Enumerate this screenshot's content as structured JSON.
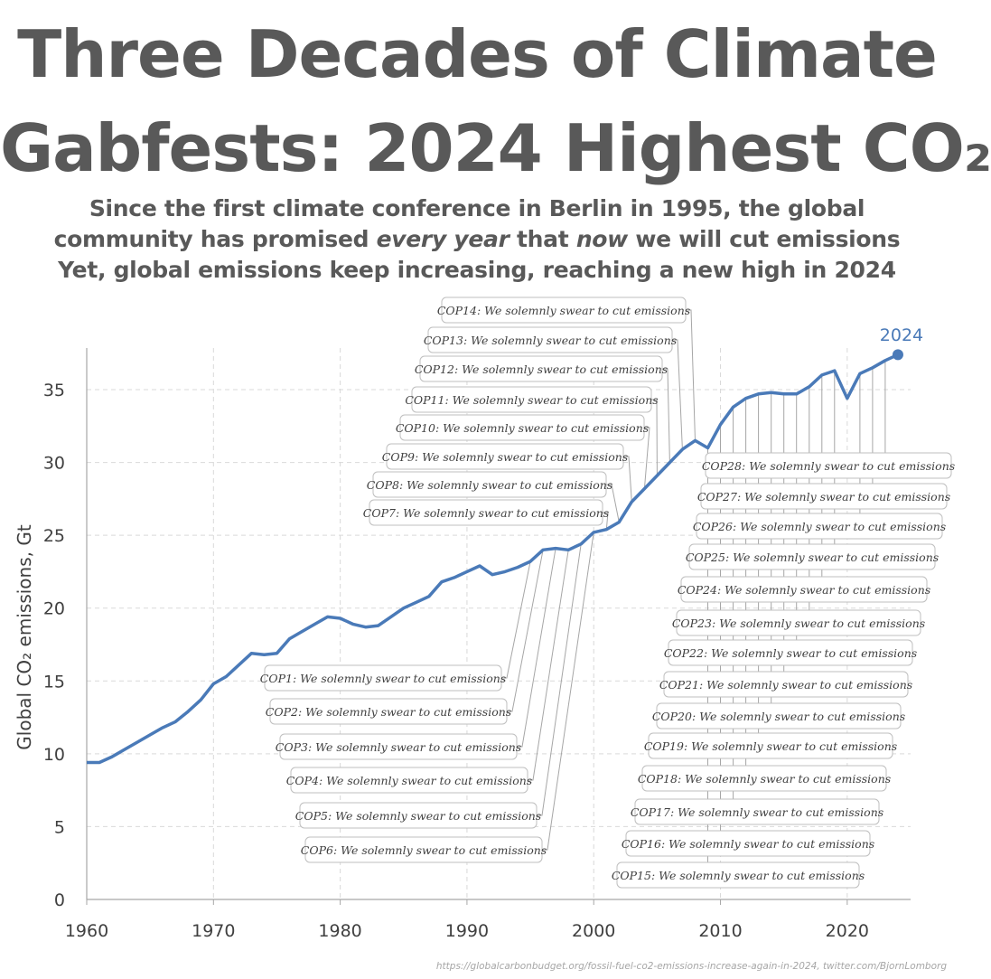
{
  "title": {
    "line1": "Three Decades of Climate",
    "line2": "Gabfests: 2024 Highest CO₂"
  },
  "subtitle": {
    "line1": "Since the first climate conference in Berlin in 1995, the global",
    "line2_a": "community has promised ",
    "line2_b": "every year",
    "line2_c": " that ",
    "line2_d": "now",
    "line2_e": " we will cut emissions",
    "line3": "Yet, global emissions keep increasing, reaching a new high in 2024"
  },
  "source": "https://globalcarbonbudget.org/fossil-fuel-co2-emissions-increase-again-in-2024, twitter.com/BjornLomborg",
  "colors": {
    "line": "#4a7ab8",
    "text": "#595959",
    "grid": "#d9d9d9",
    "callout_border": "#bfbfbf",
    "leader": "#a6a6a6"
  },
  "chart_data": {
    "type": "line",
    "xlabel": "",
    "ylabel": "Global CO₂ emissions, Gt",
    "xlim": [
      1960,
      2025
    ],
    "ylim": [
      0,
      38
    ],
    "xticks": [
      "1960",
      "1970",
      "1980",
      "1990",
      "2000",
      "2010",
      "2020"
    ],
    "yticks": [
      "0",
      "5",
      "10",
      "15",
      "20",
      "25",
      "30",
      "35"
    ],
    "grid": true,
    "end_label": "2024",
    "series": [
      {
        "name": "",
        "x": [
          1960,
          1961,
          1962,
          1963,
          1964,
          1965,
          1966,
          1967,
          1968,
          1969,
          1970,
          1971,
          1972,
          1973,
          1974,
          1975,
          1976,
          1977,
          1978,
          1979,
          1980,
          1981,
          1982,
          1983,
          1984,
          1985,
          1986,
          1987,
          1988,
          1989,
          1990,
          1991,
          1992,
          1993,
          1994,
          1995,
          1996,
          1997,
          1998,
          1999,
          2000,
          2001,
          2002,
          2003,
          2004,
          2005,
          2006,
          2007,
          2008,
          2009,
          2010,
          2011,
          2012,
          2013,
          2014,
          2015,
          2016,
          2017,
          2018,
          2019,
          2020,
          2021,
          2022,
          2023,
          2024
        ],
        "y": [
          9.4,
          9.4,
          9.8,
          10.3,
          10.8,
          11.3,
          11.8,
          12.2,
          12.9,
          13.7,
          14.8,
          15.3,
          16.1,
          16.9,
          16.8,
          16.9,
          17.9,
          18.4,
          18.9,
          19.4,
          19.3,
          18.9,
          18.7,
          18.8,
          19.4,
          20.0,
          20.4,
          20.8,
          21.8,
          22.1,
          22.5,
          22.9,
          22.3,
          22.5,
          22.8,
          23.2,
          24.0,
          24.1,
          24.0,
          24.4,
          25.2,
          25.4,
          25.9,
          27.3,
          28.2,
          29.1,
          30.0,
          30.9,
          31.5,
          31.0,
          32.6,
          33.8,
          34.4,
          34.7,
          34.8,
          34.7,
          34.7,
          35.2,
          36.0,
          36.3,
          34.4,
          36.1,
          36.5,
          37.0,
          37.4
        ]
      }
    ],
    "annotations": [
      {
        "label": "COP1: We solemnly swear to cut emissions",
        "year": 1995
      },
      {
        "label": "COP2: We solemnly swear to cut emissions",
        "year": 1996
      },
      {
        "label": "COP3: We solemnly swear to cut emissions",
        "year": 1997
      },
      {
        "label": "COP4: We solemnly swear to cut emissions",
        "year": 1998
      },
      {
        "label": "COP5: We solemnly swear to cut emissions",
        "year": 1999
      },
      {
        "label": "COP6: We solemnly swear to cut emissions",
        "year": 2000
      },
      {
        "label": "COP7: We solemnly swear to cut emissions",
        "year": 2001
      },
      {
        "label": "COP8: We solemnly swear to cut emissions",
        "year": 2002
      },
      {
        "label": "COP9: We solemnly swear to cut emissions",
        "year": 2003
      },
      {
        "label": "COP10: We solemnly swear to cut emissions",
        "year": 2004
      },
      {
        "label": "COP11: We solemnly swear to cut emissions",
        "year": 2005
      },
      {
        "label": "COP12: We solemnly swear to cut emissions",
        "year": 2006
      },
      {
        "label": "COP13: We solemnly swear to cut emissions",
        "year": 2007
      },
      {
        "label": "COP14: We solemnly swear to cut emissions",
        "year": 2008
      },
      {
        "label": "COP15: We solemnly swear to cut emissions",
        "year": 2009
      },
      {
        "label": "COP16: We solemnly swear to cut emissions",
        "year": 2010
      },
      {
        "label": "COP17: We solemnly swear to cut emissions",
        "year": 2011
      },
      {
        "label": "COP18: We solemnly swear to cut emissions",
        "year": 2012
      },
      {
        "label": "COP19: We solemnly swear to cut emissions",
        "year": 2013
      },
      {
        "label": "COP20: We solemnly swear to cut emissions",
        "year": 2014
      },
      {
        "label": "COP21: We solemnly swear to cut emissions",
        "year": 2015
      },
      {
        "label": "COP22: We solemnly swear to cut emissions",
        "year": 2016
      },
      {
        "label": "COP23: We solemnly swear to cut emissions",
        "year": 2017
      },
      {
        "label": "COP24: We solemnly swear to cut emissions",
        "year": 2018
      },
      {
        "label": "COP25: We solemnly swear to cut emissions",
        "year": 2019
      },
      {
        "label": "COP26: We solemnly swear to cut emissions",
        "year": 2021
      },
      {
        "label": "COP27: We solemnly swear to cut emissions",
        "year": 2022
      },
      {
        "label": "COP28: We solemnly swear to cut emissions",
        "year": 2023
      }
    ]
  }
}
